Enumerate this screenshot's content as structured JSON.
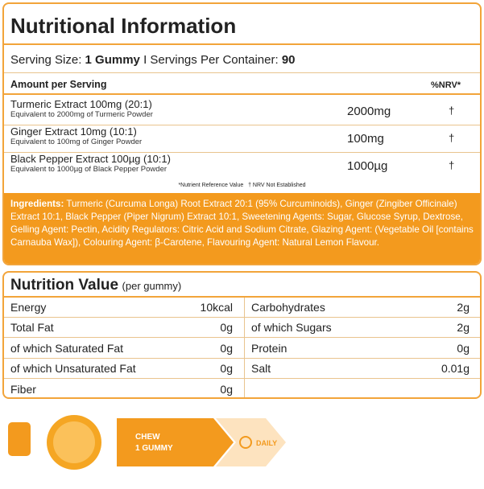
{
  "header": {
    "title": "Nutritional Information"
  },
  "serving": {
    "label1": "Serving Size:",
    "value1": "1 Gummy",
    "label2": "I Servings Per Container:",
    "value2": "90"
  },
  "table": {
    "header": {
      "amount": "Amount per Serving",
      "nrv": "%NRV*"
    },
    "rows": [
      {
        "name": "Turmeric Extract 100mg (20:1)",
        "sub": "Equivalent to 2000mg of Turmeric Powder",
        "amount": "2000mg",
        "nrv": "†"
      },
      {
        "name": "Ginger Extract 10mg (10:1)",
        "sub": "Equivalent to 100mg of Ginger Powder",
        "amount": "100mg",
        "nrv": "†"
      },
      {
        "name": "Black Pepper Extract 100µg (10:1)",
        "sub": "Equivalent to 1000µg of Black Pepper Powder",
        "amount": "1000µg",
        "nrv": "†"
      }
    ],
    "footnote": "*Nutrient Reference Value   † NRV Not Established"
  },
  "ingredients": {
    "label": "Ingredients:",
    "text": "Turmeric (Curcuma Longa) Root Extract 20:1 (95% Curcuminoids), Ginger (Zingiber Officinale) Extract 10:1, Black Pepper (Piper Nigrum) Extract 10:1, Sweetening Agents: Sugar, Glucose Syrup, Dextrose, Gelling Agent: Pectin, Acidity Regulators: Citric Acid and Sodium Citrate, Glazing Agent: (Vegetable Oil [contains Carnauba Wax]), Colouring Agent: β-Carotene, Flavouring Agent: Natural Lemon Flavour."
  },
  "nutrition": {
    "title": "Nutrition Value",
    "subtitle": "(per gummy)",
    "left": [
      [
        "Energy",
        "10kcal"
      ],
      [
        "Total Fat",
        "0g"
      ],
      [
        "of which Saturated Fat",
        "0g"
      ],
      [
        "of which Unsaturated Fat",
        "0g"
      ],
      [
        "Fiber",
        "0g"
      ]
    ],
    "right": [
      [
        "Carbohydrates",
        "2g"
      ],
      [
        "of which Sugars",
        "2g"
      ],
      [
        "Protein",
        "0g"
      ],
      [
        "Salt",
        "0.01g"
      ]
    ]
  },
  "usage": {
    "step1_line1": "CHEW",
    "step1_line2": "1 GUMMY",
    "step2": "DAILY"
  }
}
